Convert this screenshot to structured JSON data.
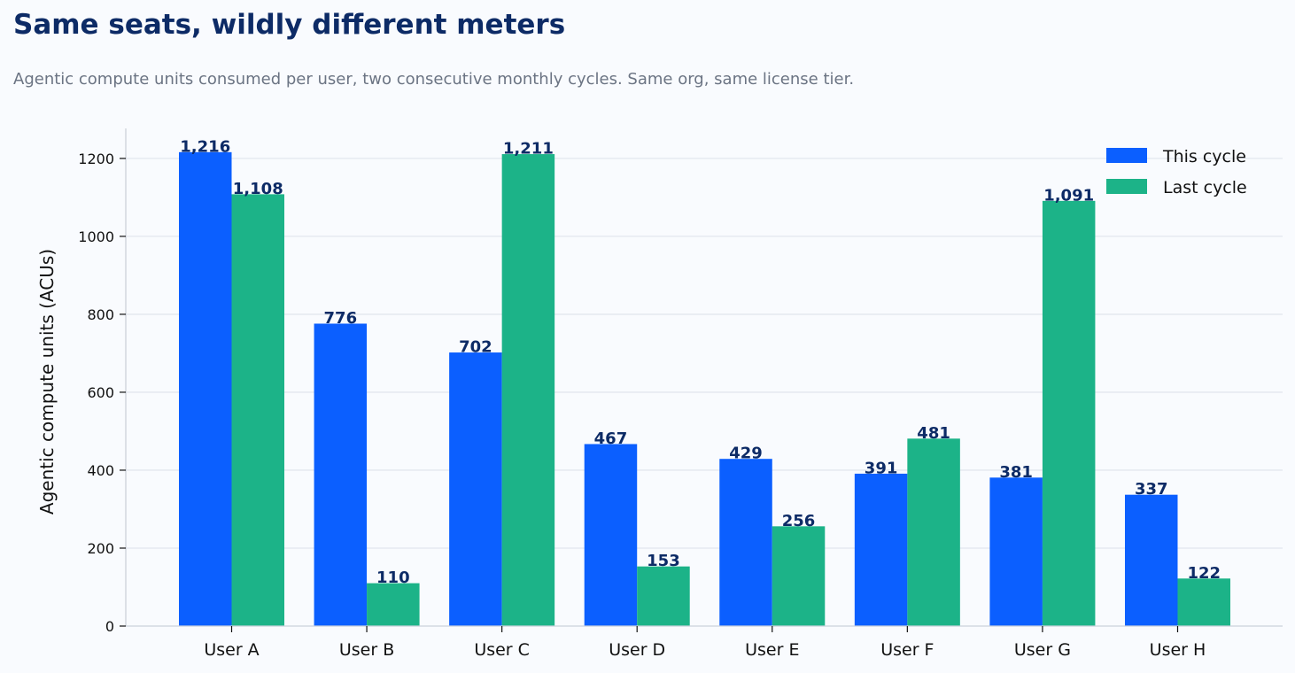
{
  "chart_data": {
    "type": "bar",
    "title": "Same seats, wildly different meters",
    "subtitle": "Agentic compute units consumed per user, two consecutive monthly cycles. Same org, same license tier.",
    "xlabel": "",
    "ylabel": "Agentic compute units (ACUs)",
    "categories": [
      "User A",
      "User B",
      "User C",
      "User D",
      "User E",
      "User F",
      "User G",
      "User H"
    ],
    "series": [
      {
        "name": "This cycle",
        "color": "#0b5fff",
        "values": [
          1216,
          776,
          702,
          467,
          429,
          391,
          381,
          337
        ],
        "labels": [
          "1,216",
          "776",
          "702",
          "467",
          "429",
          "391",
          "381",
          "337"
        ]
      },
      {
        "name": "Last cycle",
        "color": "#1cb388",
        "values": [
          1108,
          110,
          1211,
          153,
          256,
          481,
          1091,
          122
        ],
        "labels": [
          "1,108",
          "110",
          "1,211",
          "153",
          "256",
          "481",
          "1,091",
          "122"
        ]
      }
    ],
    "ylim": [
      0,
      1277
    ],
    "yticks": [
      0,
      200,
      400,
      600,
      800,
      1000,
      1200
    ],
    "grid": "horizontal",
    "legend": "top-right"
  }
}
